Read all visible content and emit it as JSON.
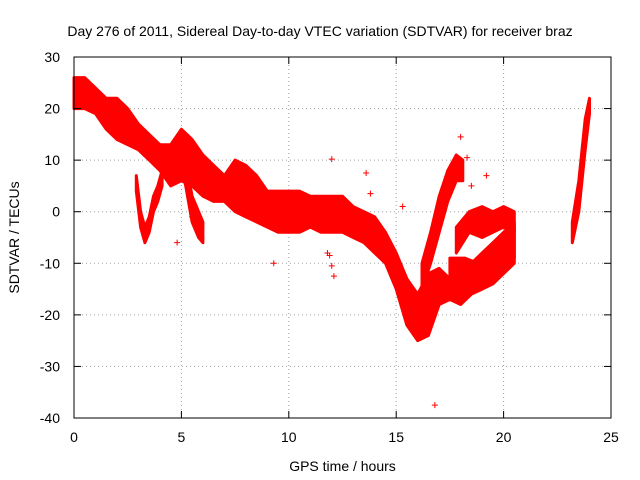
{
  "chart_data": {
    "type": "scatter",
    "title": "Day 276 of 2011, Sidereal Day-to-day VTEC variation (SDTVAR) for receiver braz",
    "xlabel": "GPS time / hours",
    "ylabel": "SDTVAR / TECUs",
    "xlim": [
      0,
      25
    ],
    "ylim": [
      -40,
      30
    ],
    "xticks": [
      0,
      5,
      10,
      15,
      20,
      25
    ],
    "yticks": [
      -40,
      -30,
      -20,
      -10,
      0,
      10,
      20,
      30
    ],
    "grid": true,
    "marker": "+",
    "color": "#ff0000",
    "band_series": [
      {
        "name": "main band",
        "x": [
          0.0,
          0.5,
          1.0,
          1.5,
          2.0,
          2.5,
          3.0,
          3.5,
          4.0,
          4.5,
          5.0,
          5.5,
          6.0,
          6.5,
          7.0,
          7.5,
          8.0,
          8.5,
          9.0,
          9.5,
          10.0,
          10.5,
          11.0,
          11.5,
          12.0,
          12.5,
          13.0,
          13.5,
          14.0,
          14.5,
          15.0,
          15.5,
          16.0,
          16.5,
          17.0,
          17.5,
          18.0,
          18.5,
          19.0,
          19.5,
          20.0,
          20.5
        ],
        "upper": [
          26,
          26,
          24,
          22,
          22,
          20,
          17,
          15,
          13,
          13,
          16,
          14,
          11,
          9,
          7,
          10,
          9,
          7,
          4,
          4,
          4,
          4,
          3,
          3,
          3,
          3,
          1,
          0,
          -1,
          -4,
          -8,
          -13,
          -16,
          -12,
          -11,
          -13,
          -12,
          -10,
          -8,
          -6,
          -4,
          -2
        ],
        "lower": [
          20,
          20,
          19,
          16,
          14,
          13,
          12,
          10,
          8,
          5,
          6,
          5,
          3,
          2,
          2,
          0,
          -1,
          -2,
          -3,
          -4,
          -4,
          -4,
          -3,
          -4,
          -4,
          -4,
          -5,
          -6,
          -8,
          -10,
          -15,
          -22,
          -25,
          -24,
          -18,
          -17,
          -18,
          -16,
          -15,
          -14,
          -12,
          -10
        ]
      },
      {
        "name": "arc 1",
        "x": [
          2.9,
          3.1,
          3.3,
          3.5,
          3.7,
          3.9,
          4.1
        ],
        "upper": [
          7,
          0,
          -3,
          -1,
          3,
          5,
          8
        ],
        "lower": [
          4,
          -3,
          -6,
          -4,
          0,
          2,
          5
        ]
      },
      {
        "name": "arc 2",
        "x": [
          4.6,
          4.9,
          5.2,
          5.5,
          5.8,
          6.0
        ],
        "upper": [
          13,
          15,
          10,
          3,
          0,
          -2
        ],
        "lower": [
          8,
          10,
          5,
          -2,
          -5,
          -6
        ]
      },
      {
        "name": "rising streak",
        "x": [
          16.2,
          16.6,
          17.0,
          17.4,
          17.8,
          18.1
        ],
        "upper": [
          -10,
          -4,
          3,
          8,
          11,
          10
        ],
        "lower": [
          -15,
          -10,
          -4,
          2,
          6,
          6
        ]
      },
      {
        "name": "late ring upper",
        "x": [
          17.8,
          18.4,
          19.0,
          19.5,
          20.0,
          20.5
        ],
        "upper": [
          -3,
          0,
          1,
          0,
          1,
          0
        ],
        "lower": [
          -8,
          -4,
          -5,
          -4,
          -3,
          -4
        ]
      },
      {
        "name": "late ring lower",
        "x": [
          17.5,
          18.2,
          18.8,
          19.4,
          20.0,
          20.5
        ],
        "upper": [
          -9,
          -9,
          -10,
          -8,
          -5,
          -3
        ],
        "lower": [
          -15,
          -15,
          -14,
          -12,
          -10,
          -9
        ]
      },
      {
        "name": "end segment",
        "x": [
          23.2,
          23.5,
          23.8,
          24.0
        ],
        "upper": [
          -2,
          6,
          18,
          22
        ],
        "lower": [
          -6,
          0,
          12,
          19
        ]
      }
    ],
    "outliers": [
      {
        "x": 4.8,
        "y": -6
      },
      {
        "x": 5.5,
        "y": -1
      },
      {
        "x": 9.3,
        "y": -10
      },
      {
        "x": 11.8,
        "y": -8
      },
      {
        "x": 11.9,
        "y": -8.5
      },
      {
        "x": 12.0,
        "y": 10.2
      },
      {
        "x": 12.0,
        "y": -10.5
      },
      {
        "x": 12.1,
        "y": -12.5
      },
      {
        "x": 13.6,
        "y": 7.5
      },
      {
        "x": 13.8,
        "y": 3.5
      },
      {
        "x": 15.3,
        "y": 1
      },
      {
        "x": 16.8,
        "y": -37.5
      },
      {
        "x": 17.7,
        "y": 8
      },
      {
        "x": 18.0,
        "y": 14.5
      },
      {
        "x": 18.3,
        "y": 10.5
      },
      {
        "x": 18.5,
        "y": 5
      },
      {
        "x": 19.2,
        "y": 7
      }
    ]
  }
}
